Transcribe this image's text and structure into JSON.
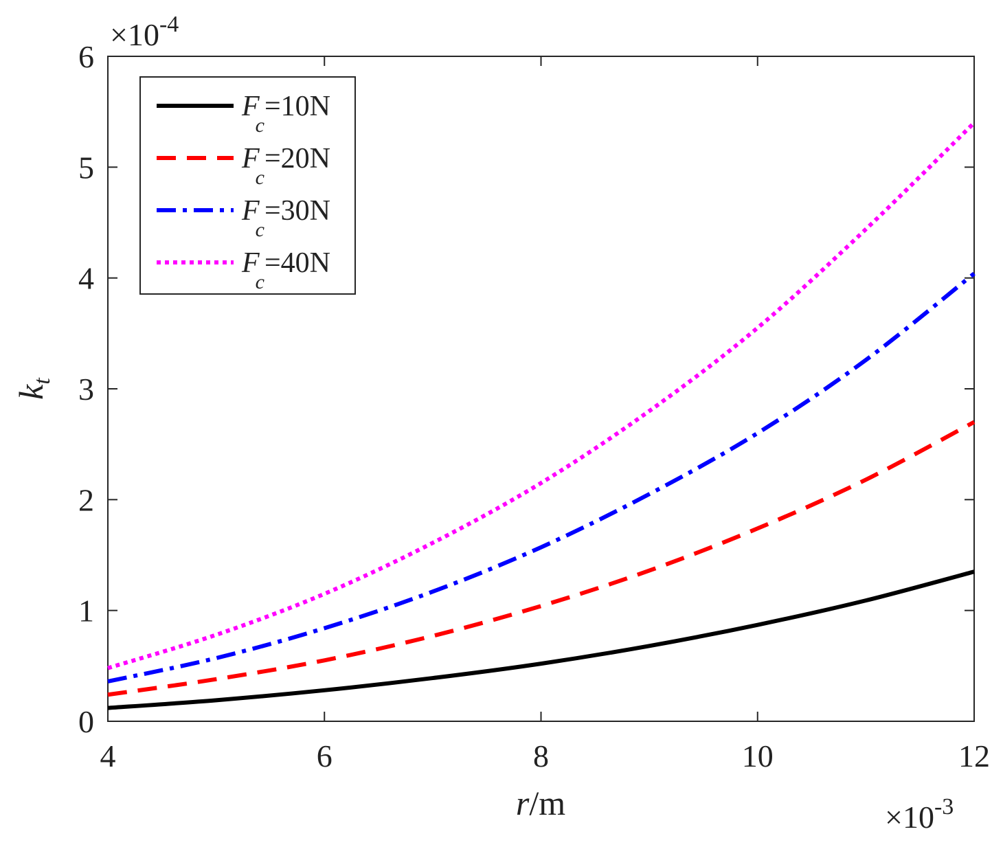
{
  "chart_data": {
    "type": "line",
    "title": "",
    "xlabel": {
      "var": "r",
      "unit": "/m"
    },
    "ylabel": {
      "var": "k",
      "sub": "t"
    },
    "x_multiplier": {
      "times": "×10",
      "exp": "-3"
    },
    "y_multiplier": {
      "times": "×10",
      "exp": "-4"
    },
    "xlim": [
      4,
      12
    ],
    "ylim": [
      0,
      6
    ],
    "xticks": [
      4,
      6,
      8,
      10,
      12
    ],
    "yticks": [
      0,
      1,
      2,
      3,
      4,
      5,
      6
    ],
    "x": [
      4,
      5,
      6,
      7,
      8,
      9,
      10,
      11,
      12
    ],
    "legend_position": "top-left",
    "series": [
      {
        "name": "Fc=10N",
        "label": {
          "var": "F",
          "sub": "c",
          "value": "=10N"
        },
        "color": "#000000",
        "style": "solid",
        "values": [
          0.12,
          0.19,
          0.28,
          0.39,
          0.52,
          0.68,
          0.87,
          1.09,
          1.35
        ]
      },
      {
        "name": "Fc=20N",
        "label": {
          "var": "F",
          "sub": "c",
          "value": "=20N"
        },
        "color": "#ff0000",
        "style": "dashed",
        "values": [
          0.24,
          0.38,
          0.55,
          0.77,
          1.04,
          1.36,
          1.74,
          2.18,
          2.7
        ]
      },
      {
        "name": "Fc=30N",
        "label": {
          "var": "F",
          "sub": "c",
          "value": "=30N"
        },
        "color": "#0000ff",
        "style": "dashdot",
        "values": [
          0.36,
          0.57,
          0.84,
          1.17,
          1.57,
          2.05,
          2.6,
          3.26,
          4.04
        ]
      },
      {
        "name": "Fc=40N",
        "label": {
          "var": "F",
          "sub": "c",
          "value": "=40N"
        },
        "color": "#ff00ff",
        "style": "dotted",
        "values": [
          0.48,
          0.78,
          1.15,
          1.61,
          2.15,
          2.8,
          3.55,
          4.44,
          5.4
        ]
      }
    ]
  }
}
